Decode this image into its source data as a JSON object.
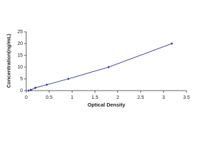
{
  "chart_data": {
    "type": "line",
    "x_label": "Optical Density",
    "y_label": "Concentration(ng/mL)",
    "x": [
      0.05,
      0.1,
      0.2,
      0.45,
      0.92,
      1.8,
      3.18
    ],
    "series": [
      {
        "color": "#1a237e",
        "values": [
          0,
          0.3,
          1.2,
          2.5,
          5,
          10,
          20
        ]
      }
    ],
    "xlim": [
      0,
      3.5
    ],
    "xticks": [
      0,
      0.5,
      1,
      1.5,
      2,
      2.5,
      3,
      3.5
    ],
    "ylim": [
      0,
      25
    ],
    "yticks": [
      0,
      5,
      10,
      15,
      20,
      25
    ]
  }
}
